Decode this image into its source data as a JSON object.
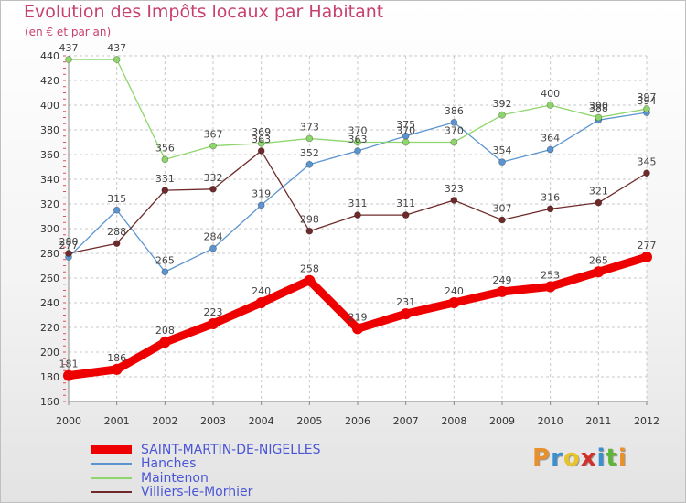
{
  "title": "Evolution des Impôts locaux par Habitant",
  "subtitle": "(en € et par an)",
  "logo": {
    "text": "Proxiti",
    "letter_colors": [
      "#e8912c",
      "#3a8fd0",
      "#e8c42c",
      "#d0312d",
      "#3a8fd0",
      "#5fb53a",
      "#e8912c"
    ]
  },
  "chart_data": {
    "type": "line",
    "x": [
      "2000",
      "2001",
      "2002",
      "2003",
      "2004",
      "2005",
      "2006",
      "2007",
      "2008",
      "2009",
      "2010",
      "2011",
      "2012"
    ],
    "ylim": [
      160,
      440
    ],
    "yticks": [
      160,
      180,
      200,
      220,
      240,
      260,
      280,
      300,
      320,
      340,
      360,
      380,
      400,
      420,
      440
    ],
    "grid": true,
    "legend_position": "bottom-left",
    "series": [
      {
        "name": "SAINT-MARTIN-DE-NIGELLES",
        "color": "#ee0000",
        "values": [
          181,
          186,
          208,
          223,
          240,
          258,
          219,
          231,
          240,
          249,
          253,
          265,
          277
        ]
      },
      {
        "name": "Hanches",
        "color": "#5b95cf",
        "values": [
          277,
          315,
          265,
          284,
          319,
          352,
          363,
          375,
          386,
          354,
          364,
          388,
          394
        ]
      },
      {
        "name": "Maintenon",
        "color": "#8ed66b",
        "values": [
          437,
          437,
          356,
          367,
          369,
          373,
          370,
          370,
          370,
          392,
          400,
          390,
          397
        ]
      },
      {
        "name": "Villiers-le-Morhier",
        "color": "#6e2a2a",
        "values": [
          280,
          288,
          331,
          332,
          363,
          298,
          311,
          311,
          323,
          307,
          316,
          321,
          345
        ]
      }
    ]
  }
}
